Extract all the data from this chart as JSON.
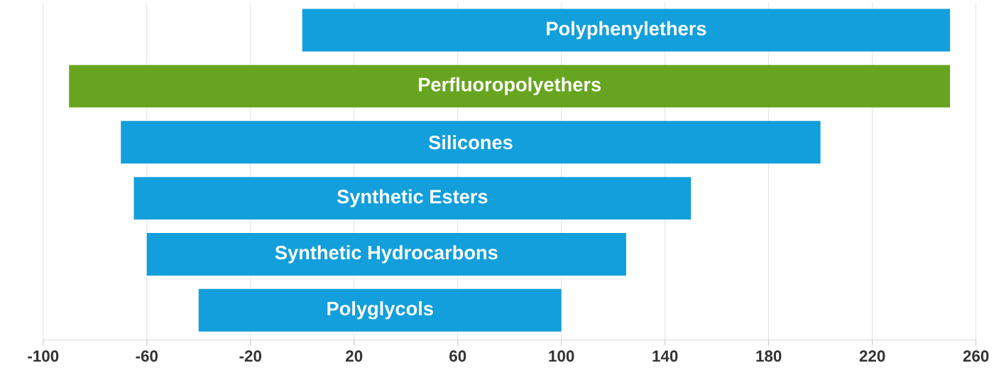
{
  "chart_data": {
    "type": "bar",
    "orientation": "horizontal",
    "grid": "x",
    "categories": [
      "Polyphenylethers",
      "Perfluoropolyethers",
      "Silicones",
      "Synthetic Esters",
      "Synthetic Hydrocarbons",
      "Polyglycols"
    ],
    "base": [
      0,
      -90,
      -70,
      -65,
      -60,
      -40
    ],
    "values": [
      250,
      340,
      270,
      215,
      185,
      140
    ],
    "colors": [
      "#129fdb",
      "#67a520",
      "#129fdb",
      "#129fdb",
      "#129fdb",
      "#129fdb"
    ],
    "xlim": [
      -100,
      260
    ],
    "xticks": [
      -100,
      -60,
      -20,
      20,
      60,
      100,
      140,
      180,
      220,
      260
    ]
  }
}
